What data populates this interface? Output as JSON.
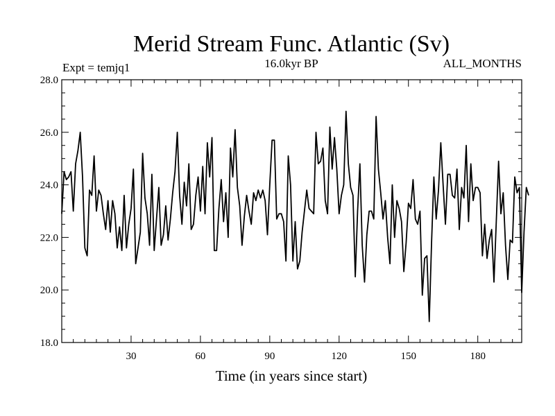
{
  "chart_data": {
    "type": "line",
    "title": "Merid Stream Func. Atlantic (Sv)",
    "subtitle_left": "Expt = temjq1",
    "subtitle_center": "16.0kyr BP",
    "subtitle_right": "ALL_MONTHS",
    "xlabel": "Time (in years since start)",
    "ylabel": "",
    "xlim": [
      0,
      199
    ],
    "ylim": [
      18.0,
      28.0
    ],
    "x_ticks": [
      30,
      60,
      90,
      120,
      150,
      180
    ],
    "y_ticks": [
      18.0,
      20.0,
      22.0,
      24.0,
      26.0,
      28.0
    ],
    "x_tick_labels": [
      "30",
      "60",
      "90",
      "120",
      "150",
      "180"
    ],
    "y_tick_labels": [
      "18.0",
      "20.0",
      "22.0",
      "24.0",
      "26.0",
      "28.0"
    ],
    "series": [
      {
        "name": "Merid Stream Func. Atlantic",
        "x_start": 0,
        "x_step": 1,
        "values": [
          22.9,
          24.5,
          24.2,
          24.3,
          24.5,
          23.0,
          24.8,
          25.3,
          26.0,
          24.3,
          21.6,
          21.3,
          23.8,
          23.6,
          25.1,
          23.0,
          23.8,
          23.6,
          22.9,
          22.3,
          23.4,
          22.2,
          23.4,
          22.9,
          21.6,
          22.4,
          21.5,
          23.6,
          21.6,
          22.5,
          23.1,
          24.6,
          21.0,
          21.6,
          22.2,
          25.2,
          23.5,
          22.9,
          21.7,
          24.4,
          21.5,
          22.7,
          23.9,
          21.7,
          22.1,
          23.2,
          21.9,
          22.7,
          23.7,
          24.5,
          26.0,
          23.6,
          22.5,
          24.1,
          23.2,
          24.8,
          22.3,
          22.5,
          23.6,
          24.3,
          23.0,
          24.7,
          22.9,
          25.6,
          24.3,
          25.8,
          21.5,
          21.5,
          23.1,
          24.2,
          22.6,
          23.7,
          22.0,
          25.4,
          24.3,
          26.1,
          23.9,
          23.2,
          21.7,
          22.8,
          23.6,
          23.0,
          22.5,
          23.7,
          23.4,
          23.8,
          23.5,
          23.8,
          23.4,
          22.1,
          24.0,
          25.7,
          25.7,
          22.7,
          22.9,
          22.9,
          22.6,
          21.1,
          25.1,
          24.0,
          21.1,
          22.6,
          20.8,
          21.1,
          22.2,
          23.0,
          23.8,
          23.1,
          23.0,
          22.9,
          26.0,
          24.8,
          24.9,
          25.4,
          23.4,
          22.9,
          26.2,
          24.6,
          25.8,
          24.6,
          22.9,
          23.6,
          24.0,
          26.8,
          24.8,
          23.9,
          23.6,
          20.5,
          23.0,
          24.8,
          21.7,
          20.3,
          22.1,
          23.0,
          23.0,
          22.7,
          26.6,
          24.6,
          23.7,
          22.7,
          23.4,
          22.0,
          21.0,
          24.0,
          22.0,
          23.4,
          23.1,
          22.6,
          20.7,
          21.8,
          23.3,
          23.1,
          24.2,
          22.7,
          22.5,
          23.0,
          19.8,
          21.2,
          21.3,
          18.8,
          21.8,
          24.3,
          22.7,
          23.8,
          25.6,
          24.0,
          22.5,
          24.4,
          24.4,
          23.6,
          23.5,
          24.6,
          22.3,
          23.9,
          23.5,
          25.5,
          22.6,
          24.8,
          23.4,
          23.9,
          23.9,
          23.7,
          21.3,
          22.5,
          21.2,
          21.9,
          22.3,
          20.3,
          22.6,
          24.9,
          22.9,
          23.7,
          21.7,
          20.4,
          21.9,
          21.8,
          24.3,
          23.7,
          23.9,
          19.9,
          22.2,
          23.9,
          23.6
        ]
      }
    ]
  }
}
